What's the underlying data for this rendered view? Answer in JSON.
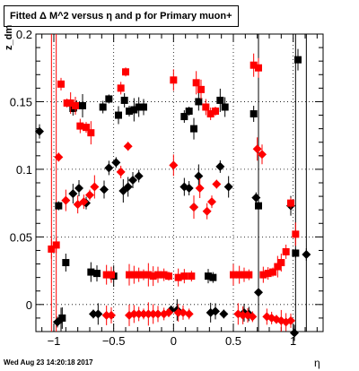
{
  "chart_data": {
    "type": "scatter",
    "title": "Fitted Δ M^2 versus η and p for Primary muon+",
    "xlabel": "η",
    "ylabel": "z_dm",
    "timestamp": "Wed Aug 23 14:20:18 2017",
    "xlim": [
      -1.15,
      1.25
    ],
    "ylim": [
      -0.02,
      0.2
    ],
    "x_ticks": [
      -1,
      -0.5,
      0,
      0.5,
      1
    ],
    "x_tick_labels": [
      "−1",
      "−0.5",
      "0",
      "0.5",
      "1"
    ],
    "y_ticks": [
      0,
      0.05,
      0.1,
      0.15,
      0.2
    ],
    "y_tick_labels": [
      "0",
      "0.05",
      "0.1",
      "0.15",
      "0.2"
    ],
    "grid": true,
    "series": [
      {
        "marker": "square",
        "color": "#000000",
        "points": [
          [
            -0.96,
            0.073
          ],
          [
            -0.93,
            -0.01
          ],
          [
            -0.9,
            0.031
          ],
          [
            -0.84,
            0.145
          ],
          [
            -0.81,
            0.147
          ],
          [
            -0.76,
            0.147
          ],
          [
            -0.69,
            0.024
          ],
          [
            -0.64,
            0.023
          ],
          [
            -0.59,
            0.146
          ],
          [
            -0.54,
            0.152
          ],
          [
            -0.5,
            0.021
          ],
          [
            -0.46,
            0.14
          ],
          [
            -0.41,
            0.151
          ],
          [
            -0.37,
            0.143
          ],
          [
            -0.33,
            0.144
          ],
          [
            -0.29,
            0.146
          ],
          [
            -0.25,
            0.146
          ],
          [
            0.09,
            0.139
          ],
          [
            0.13,
            0.143
          ],
          [
            0.17,
            0.13
          ],
          [
            0.21,
            0.15
          ],
          [
            0.29,
            0.021
          ],
          [
            0.33,
            0.02
          ],
          [
            0.39,
            0.151
          ],
          [
            0.43,
            0.146
          ],
          [
            0.67,
            0.141
          ],
          [
            0.71,
            0.073
          ],
          [
            1.02,
            0.038
          ],
          [
            1.04,
            0.181
          ]
        ]
      },
      {
        "marker": "diamond",
        "color": "#000000",
        "points": [
          [
            -1.12,
            0.128
          ],
          [
            -0.97,
            -0.013
          ],
          [
            -0.94,
            -0.011
          ],
          [
            -0.84,
            0.082
          ],
          [
            -0.79,
            0.086
          ],
          [
            -0.73,
            0.075
          ],
          [
            -0.67,
            -0.007
          ],
          [
            -0.63,
            -0.007
          ],
          [
            -0.58,
            0.085
          ],
          [
            -0.54,
            0.101
          ],
          [
            -0.48,
            0.105
          ],
          [
            -0.42,
            0.084
          ],
          [
            -0.38,
            0.087
          ],
          [
            -0.34,
            0.092
          ],
          [
            -0.29,
            0.095
          ],
          [
            -0.02,
            -0.004
          ],
          [
            0.03,
            -0.004
          ],
          [
            0.09,
            0.087
          ],
          [
            0.13,
            0.086
          ],
          [
            0.17,
            0.072
          ],
          [
            0.21,
            0.095
          ],
          [
            0.31,
            -0.006
          ],
          [
            0.35,
            -0.005
          ],
          [
            0.39,
            0.102
          ],
          [
            0.42,
            -0.007
          ],
          [
            0.46,
            0.087
          ],
          [
            0.59,
            -0.006
          ],
          [
            0.63,
            -0.007
          ],
          [
            0.69,
            0.079
          ],
          [
            0.71,
            0.009
          ],
          [
            0.98,
            0.073
          ],
          [
            1.01,
            -0.021
          ],
          [
            1.11,
            0.037
          ]
        ]
      },
      {
        "marker": "square",
        "color": "#ff0000",
        "points": [
          [
            -1.02,
            0.041
          ],
          [
            -0.98,
            0.044
          ],
          [
            -0.94,
            0.163
          ],
          [
            -0.89,
            0.149
          ],
          [
            -0.86,
            0.149
          ],
          [
            -0.82,
            0.147
          ],
          [
            -0.78,
            0.132
          ],
          [
            -0.73,
            0.131
          ],
          [
            -0.69,
            0.127
          ],
          [
            -0.56,
            0.022
          ],
          [
            -0.52,
            0.022
          ],
          [
            -0.44,
            0.16
          ],
          [
            -0.4,
            0.172
          ],
          [
            -0.37,
            0.022
          ],
          [
            -0.33,
            0.022
          ],
          [
            -0.29,
            0.022
          ],
          [
            -0.25,
            0.022
          ],
          [
            -0.21,
            0.022
          ],
          [
            -0.17,
            0.021
          ],
          [
            -0.13,
            0.022
          ],
          [
            -0.08,
            0.022
          ],
          [
            -0.04,
            0.021
          ],
          [
            -0.0,
            0.166
          ],
          [
            0.04,
            0.02
          ],
          [
            0.09,
            0.021
          ],
          [
            0.15,
            0.021
          ],
          [
            0.19,
            0.164
          ],
          [
            0.23,
            0.159
          ],
          [
            0.27,
            0.146
          ],
          [
            0.31,
            0.141
          ],
          [
            0.35,
            0.143
          ],
          [
            0.5,
            0.022
          ],
          [
            0.55,
            0.022
          ],
          [
            0.59,
            0.022
          ],
          [
            0.63,
            0.022
          ],
          [
            0.67,
            0.177
          ],
          [
            0.71,
            0.175
          ],
          [
            0.75,
            0.022
          ],
          [
            0.79,
            0.023
          ],
          [
            0.83,
            0.024
          ],
          [
            0.87,
            0.028
          ],
          [
            0.9,
            0.031
          ],
          [
            0.94,
            0.039
          ],
          [
            0.98,
            0.075
          ],
          [
            1.02,
            0.052
          ]
        ]
      },
      {
        "marker": "diamond",
        "color": "#ff0000",
        "points": [
          [
            -0.96,
            0.109
          ],
          [
            -0.9,
            0.077
          ],
          [
            -0.8,
            0.074
          ],
          [
            -0.75,
            0.076
          ],
          [
            -0.7,
            0.081
          ],
          [
            -0.66,
            0.087
          ],
          [
            -0.56,
            -0.008
          ],
          [
            -0.52,
            -0.008
          ],
          [
            -0.44,
            0.098
          ],
          [
            -0.38,
            0.117
          ],
          [
            -0.37,
            -0.008
          ],
          [
            -0.33,
            -0.007
          ],
          [
            -0.29,
            -0.007
          ],
          [
            -0.25,
            -0.007
          ],
          [
            -0.21,
            -0.007
          ],
          [
            -0.17,
            -0.007
          ],
          [
            -0.13,
            -0.007
          ],
          [
            -0.08,
            -0.007
          ],
          [
            -0.04,
            -0.006
          ],
          [
            -0.0,
            0.103
          ],
          [
            0.04,
            -0.006
          ],
          [
            0.08,
            -0.006
          ],
          [
            0.13,
            -0.007
          ],
          [
            0.17,
            0.072
          ],
          [
            0.22,
            0.086
          ],
          [
            0.28,
            0.069
          ],
          [
            0.32,
            0.076
          ],
          [
            0.36,
            0.089
          ],
          [
            0.54,
            -0.007
          ],
          [
            0.58,
            -0.008
          ],
          [
            0.62,
            -0.008
          ],
          [
            0.66,
            -0.009
          ],
          [
            0.7,
            0.115
          ],
          [
            0.74,
            0.111
          ],
          [
            0.78,
            -0.009
          ],
          [
            0.82,
            -0.01
          ],
          [
            0.86,
            -0.011
          ],
          [
            0.9,
            -0.012
          ],
          [
            0.94,
            -0.013
          ],
          [
            0.98,
            -0.012
          ]
        ]
      }
    ]
  }
}
